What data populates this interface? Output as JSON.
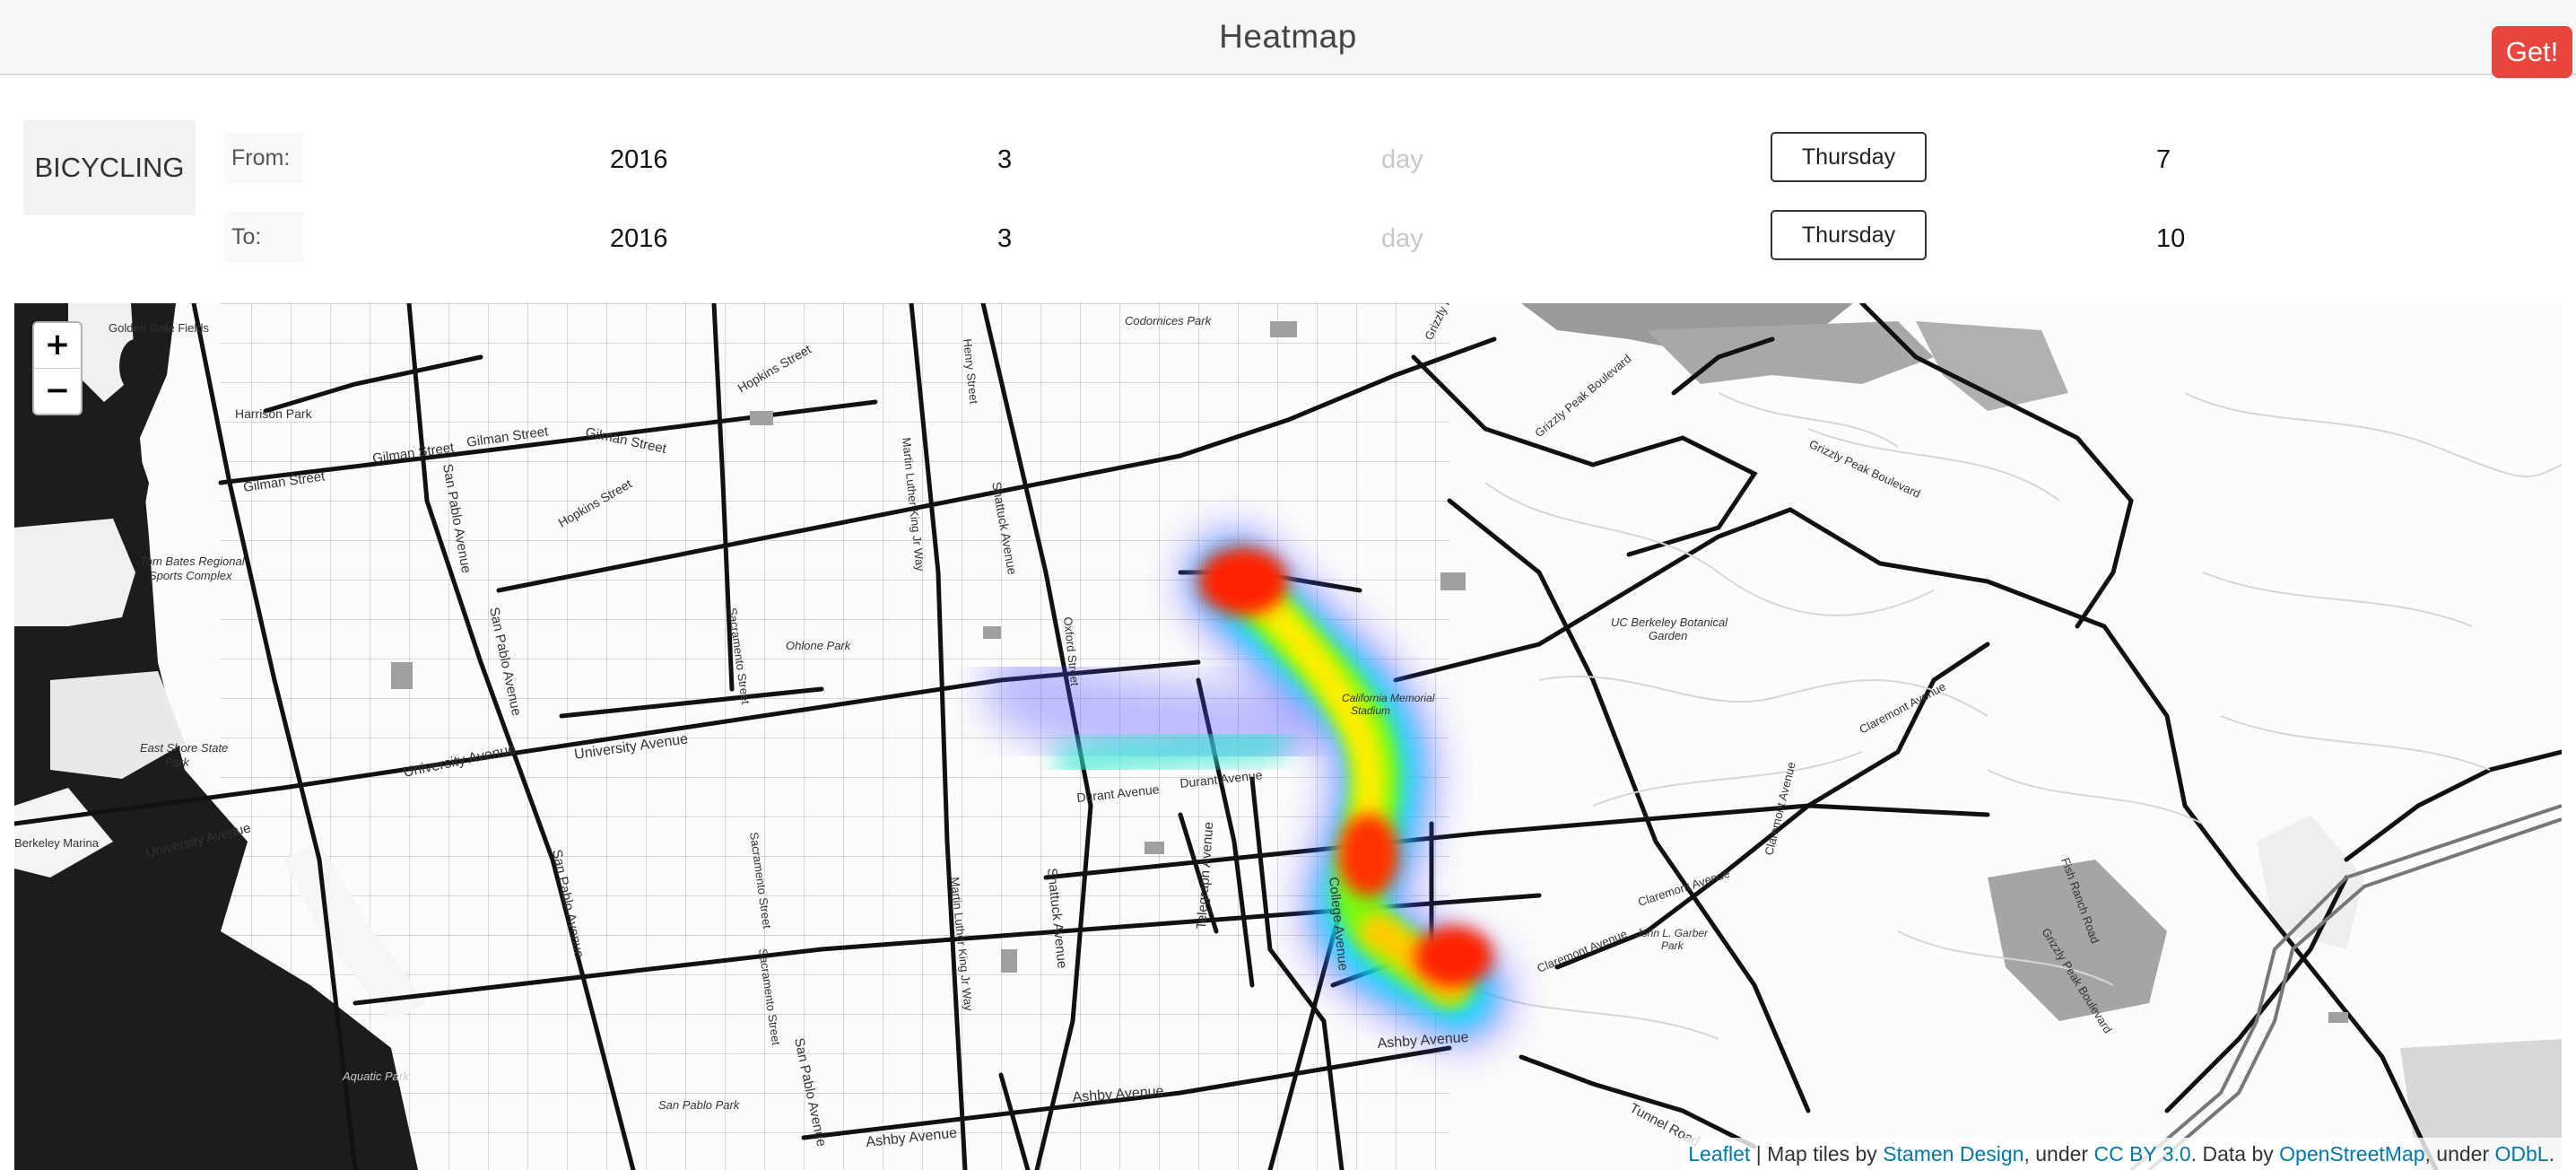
{
  "header": {
    "title": "Heatmap",
    "get_label": "Get!"
  },
  "controls": {
    "mode": "BICYCLING",
    "from": {
      "label": "From:",
      "year": "2016",
      "month": "3",
      "day_placeholder": "day",
      "weekday": "Thursday",
      "hour": "7"
    },
    "to": {
      "label": "To:",
      "year": "2016",
      "month": "3",
      "day_placeholder": "day",
      "weekday": "Thursday",
      "hour": "10"
    }
  },
  "map": {
    "zoom_in": "+",
    "zoom_out": "−",
    "labels": {
      "golden_gate_fields": "Golden Gate Fields",
      "harrison_park": "Harrison Park",
      "gilman_1": "Gilman Street",
      "gilman_2": "Gilman Street",
      "gilman_3": "Gilman Street",
      "gilman_4": "Gilman Street",
      "hopkins_1": "Hopkins Street",
      "hopkins_2": "Hopkins Street",
      "san_pablo_1": "San Pablo Avenue",
      "san_pablo_2": "San Pablo Avenue",
      "san_pablo_3": "San Pablo Avenue",
      "san_pablo_4": "San Pablo Avenue",
      "tom_bates_1": "Tom Bates Regional",
      "tom_bates_2": "Sports Complex",
      "east_shore_1": "East Shore State",
      "east_shore_2": "Park",
      "berkeley_marina": "Berkeley Marina",
      "university_1": "University Avenue",
      "university_2": "University Avenue",
      "university_3": "University Avenue",
      "sacramento_1": "Sacramento Street",
      "sacramento_2": "Sacramento Street",
      "sacramento_3": "Sacramento Street",
      "ohlone_park": "Ohlone Park",
      "mlk_1": "Martin Luther King Jr Way",
      "mlk_2": "Martin Luther King Jr Way",
      "henry_street": "Henry Street",
      "shattuck_1": "Shattuck Avenue",
      "shattuck_2": "Shattuck Avenue",
      "oxford_street": "Oxford Street",
      "codornices_park": "Codornices Park",
      "durant_1": "Durant Avenue",
      "durant_2": "Durant Avenue",
      "california_memorial_1": "California Memorial",
      "california_memorial_2": "Stadium",
      "college_avenue": "College Avenue",
      "telegraph_avenue": "Telegraph Avenue",
      "ashby_1": "Ashby Avenue",
      "ashby_2": "Ashby Avenue",
      "ashby_3": "Ashby Avenue",
      "grizzly_peak_1": "Grizzly Peak Boulevard",
      "grizzly_peak_2": "Grizzly Peak Boulevard",
      "grizzly_peak_3": "Grizzly Peak Boulevard",
      "grizzly_peak_4": "Grizzly Peak Boulevard",
      "uc_botanical_1": "UC Berkeley Botanical",
      "uc_botanical_2": "Garden",
      "claremont_1": "Claremont Avenue",
      "claremont_2": "Claremont Avenue",
      "claremont_3": "Claremont Avenue",
      "claremont_4": "Claremont Avenue",
      "garber_1": "John L. Garber",
      "garber_2": "Park",
      "fish_ranch": "Fish Ranch Road",
      "tunnel_road": "Tunnel Road",
      "aquatic_park": "Aquatic Park",
      "san_pablo_park": "San Pablo Park"
    },
    "attribution": {
      "leaflet": "Leaflet",
      "sep1": " | Map tiles by ",
      "stamen": "Stamen Design",
      "sep2": ", under ",
      "ccby": "CC BY 3.0",
      "sep3": ". Data by ",
      "osm": "OpenStreetMap",
      "sep4": ", under ",
      "odbl": "ODbL",
      "end": "."
    }
  }
}
